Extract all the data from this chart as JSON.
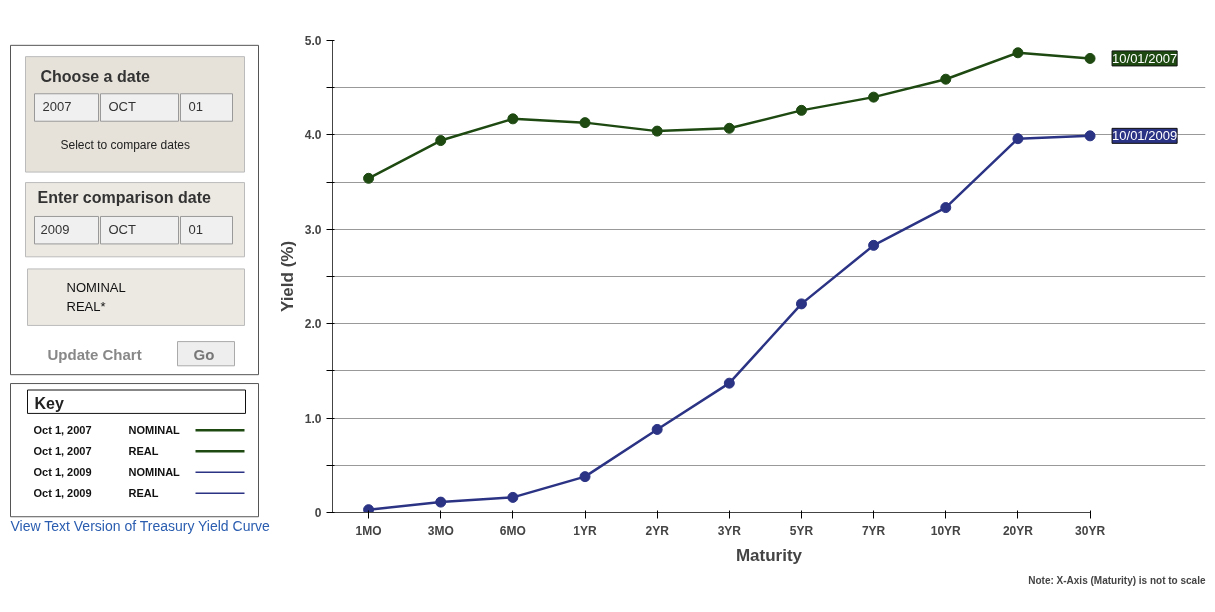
{
  "chart_data": [
    {
      "type": "other",
      "annotations": [
        "Choose a date",
        "2007",
        "OCT",
        "01",
        "Select to compare dates",
        "Enter comparison date",
        "2009",
        "OCT",
        "01",
        "NOMINAL",
        "REAL*",
        "Update Chart",
        "Go",
        "Key",
        "Oct 1, 2007",
        "NOMINAL",
        "Oct 1, 2007",
        "REAL",
        "Oct 1, 2009",
        "NOMINAL",
        "Oct 1, 2009",
        "REAL",
        "View Text Version of Treasury Yield Curve"
      ]
    },
    {
      "type": "line",
      "xlabel": "Maturity",
      "ylabel": "Yield (%)",
      "annotations": [
        "Note: X-Axis (Maturity) is not to scale"
      ],
      "categories": [
        "1MO",
        "3MO",
        "6MO",
        "1YR",
        "2YR",
        "3YR",
        "5YR",
        "7YR",
        "10YR",
        "20YR",
        "30YR"
      ],
      "series": [
        {
          "name": "10/01/2007",
          "color": "#1e4a12",
          "values": [
            3.54,
            3.94,
            4.17,
            4.13,
            4.04,
            4.07,
            4.26,
            4.4,
            4.59,
            4.87,
            4.81
          ]
        },
        {
          "name": "10/01/2009",
          "color": "#2b3384",
          "values": [
            0.03,
            0.11,
            0.16,
            0.38,
            0.88,
            1.37,
            2.21,
            2.83,
            3.23,
            3.96,
            3.99
          ]
        }
      ],
      "ylim": [
        0,
        5.0
      ],
      "yticks": [
        0,
        {
          "value": 0.5,
          "label": null
        },
        {
          "value": 1.0,
          "label": "1.0"
        },
        {
          "value": 1.5,
          "label": null
        },
        {
          "value": 2.0,
          "label": "2.0"
        },
        {
          "value": 2.5,
          "label": null
        },
        {
          "value": 3.0,
          "label": "3.0"
        },
        {
          "value": 3.5,
          "label": null
        },
        {
          "value": 4.0,
          "label": "4.0"
        },
        {
          "value": 4.5,
          "label": null
        },
        {
          "value": 5.0,
          "label": "5.0"
        }
      ],
      "grid": "y",
      "marker": "circle",
      "line_style": "solid",
      "legend": false
    }
  ]
}
